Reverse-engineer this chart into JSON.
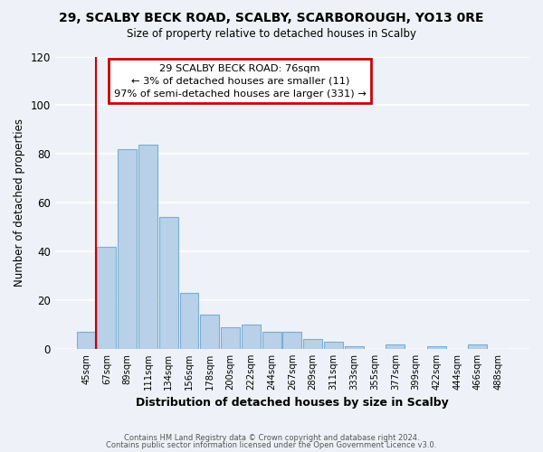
{
  "title": "29, SCALBY BECK ROAD, SCALBY, SCARBOROUGH, YO13 0RE",
  "subtitle": "Size of property relative to detached houses in Scalby",
  "xlabel": "Distribution of detached houses by size in Scalby",
  "ylabel": "Number of detached properties",
  "bar_color": "#b8d0e8",
  "bar_edge_color": "#7aaed4",
  "background_color": "#eef2f8",
  "grid_color": "#ffffff",
  "categories": [
    "45sqm",
    "67sqm",
    "89sqm",
    "111sqm",
    "134sqm",
    "156sqm",
    "178sqm",
    "200sqm",
    "222sqm",
    "244sqm",
    "267sqm",
    "289sqm",
    "311sqm",
    "333sqm",
    "355sqm",
    "377sqm",
    "399sqm",
    "422sqm",
    "444sqm",
    "466sqm",
    "488sqm"
  ],
  "values": [
    7,
    42,
    82,
    84,
    54,
    23,
    14,
    9,
    10,
    7,
    7,
    4,
    3,
    1,
    0,
    2,
    0,
    1,
    0,
    2,
    0
  ],
  "ylim": [
    0,
    120
  ],
  "yticks": [
    0,
    20,
    40,
    60,
    80,
    100,
    120
  ],
  "property_line_color": "#cc0000",
  "annotation_title": "29 SCALBY BECK ROAD: 76sqm",
  "annotation_line1": "← 3% of detached houses are smaller (11)",
  "annotation_line2": "97% of semi-detached houses are larger (331) →",
  "annotation_box_color": "#ffffff",
  "annotation_box_edge_color": "#cc0000",
  "footnote1": "Contains HM Land Registry data © Crown copyright and database right 2024.",
  "footnote2": "Contains public sector information licensed under the Open Government Licence v3.0."
}
